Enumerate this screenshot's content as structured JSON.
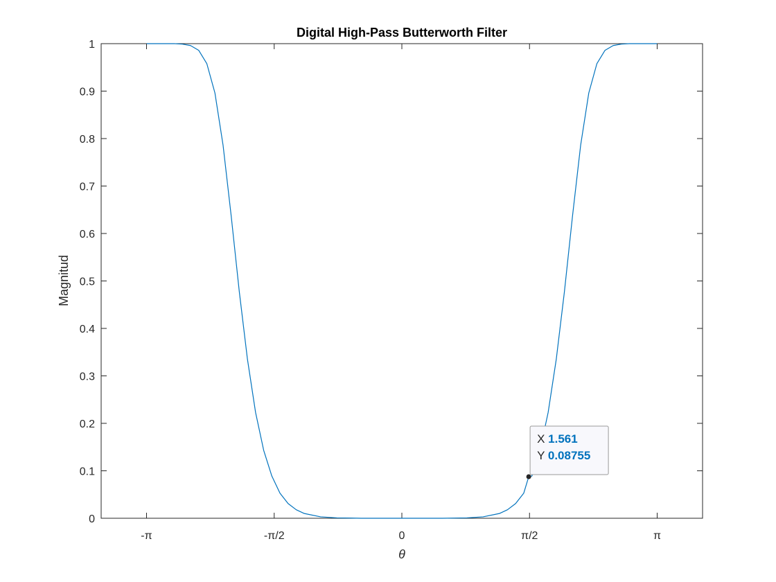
{
  "chart_data": {
    "type": "line",
    "title": "Digital High-Pass Butterworth Filter",
    "xlabel": "θ",
    "ylabel": "Magnitud",
    "xlim": [
      -3.7,
      3.7
    ],
    "ylim": [
      0,
      1
    ],
    "grid": false,
    "x_ticks": [
      {
        "value": -3.14159,
        "label": "-π"
      },
      {
        "value": -1.5708,
        "label": "-π/2"
      },
      {
        "value": 0,
        "label": "0"
      },
      {
        "value": 1.5708,
        "label": "π/2"
      },
      {
        "value": 3.14159,
        "label": "π"
      }
    ],
    "y_ticks": [
      {
        "value": 0,
        "label": "0"
      },
      {
        "value": 0.1,
        "label": "0.1"
      },
      {
        "value": 0.2,
        "label": "0.2"
      },
      {
        "value": 0.3,
        "label": "0.3"
      },
      {
        "value": 0.4,
        "label": "0.4"
      },
      {
        "value": 0.5,
        "label": "0.5"
      },
      {
        "value": 0.6,
        "label": "0.6"
      },
      {
        "value": 0.7,
        "label": "0.7"
      },
      {
        "value": 0.8,
        "label": "0.8"
      },
      {
        "value": 0.9,
        "label": "0.9"
      },
      {
        "value": 1,
        "label": "1"
      }
    ],
    "series": [
      {
        "color": "#0072bd",
        "x": [
          -3.14,
          -2.8,
          -2.7,
          -2.6,
          -2.5,
          -2.4,
          -2.3,
          -2.2,
          -2.1,
          -2.0,
          -1.9,
          -1.8,
          -1.7,
          -1.6,
          -1.5,
          -1.4,
          -1.3,
          -1.2,
          -1.0,
          -0.8,
          -0.5,
          0,
          0.5,
          0.8,
          1.0,
          1.2,
          1.3,
          1.4,
          1.5,
          1.561,
          1.6,
          1.7,
          1.8,
          1.9,
          2.0,
          2.1,
          2.2,
          2.3,
          2.4,
          2.5,
          2.6,
          2.7,
          2.8,
          3.14
        ],
        "y": [
          1.0,
          1.0,
          0.999,
          0.996,
          0.986,
          0.958,
          0.896,
          0.786,
          0.637,
          0.477,
          0.335,
          0.223,
          0.143,
          0.089,
          0.053,
          0.031,
          0.018,
          0.01,
          0.003,
          0.0008,
          5e-05,
          0,
          5e-05,
          0.0008,
          0.003,
          0.01,
          0.018,
          0.031,
          0.053,
          0.08755,
          0.089,
          0.143,
          0.223,
          0.335,
          0.477,
          0.637,
          0.786,
          0.896,
          0.958,
          0.986,
          0.996,
          0.999,
          1.0,
          1.0
        ]
      }
    ],
    "datatip": {
      "x": 1.561,
      "y": 0.08755,
      "x_prefix": "X",
      "y_prefix": "Y",
      "x_text": "1.561",
      "y_text": "0.08755",
      "value_color": "#0072bd"
    }
  }
}
